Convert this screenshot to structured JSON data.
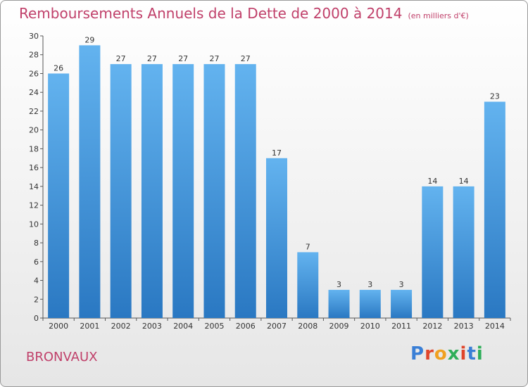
{
  "header": {
    "title": "Remboursements Annuels de la Dette de 2000 à 2014",
    "subtitle": "(en milliers d'€)"
  },
  "footer": {
    "commune": "BRONVAUX",
    "logo_text": "Proxiti",
    "logo_colors": [
      "#3a7fd6",
      "#e0452b",
      "#f0a020",
      "#2fae5a",
      "#e0452b",
      "#3a7fd6",
      "#2fae5a"
    ]
  },
  "colors": {
    "title": "#c0406a",
    "bar_light": "#63b3ef",
    "bar_dark": "#2a78c2"
  },
  "chart_data": {
    "type": "bar",
    "title": "Remboursements Annuels de la Dette de 2000 à 2014",
    "subtitle": "(en milliers d'€)",
    "categories": [
      "2000",
      "2001",
      "2002",
      "2003",
      "2004",
      "2005",
      "2006",
      "2007",
      "2008",
      "2009",
      "2010",
      "2011",
      "2012",
      "2013",
      "2014"
    ],
    "values": [
      26,
      29,
      27,
      27,
      27,
      27,
      27,
      17,
      7,
      3,
      3,
      3,
      14,
      14,
      23
    ],
    "ylim": [
      0,
      30
    ],
    "yticks": [
      0,
      2,
      4,
      6,
      8,
      10,
      12,
      14,
      16,
      18,
      20,
      22,
      24,
      26,
      28,
      30
    ],
    "grid": false,
    "data_labels": true
  }
}
